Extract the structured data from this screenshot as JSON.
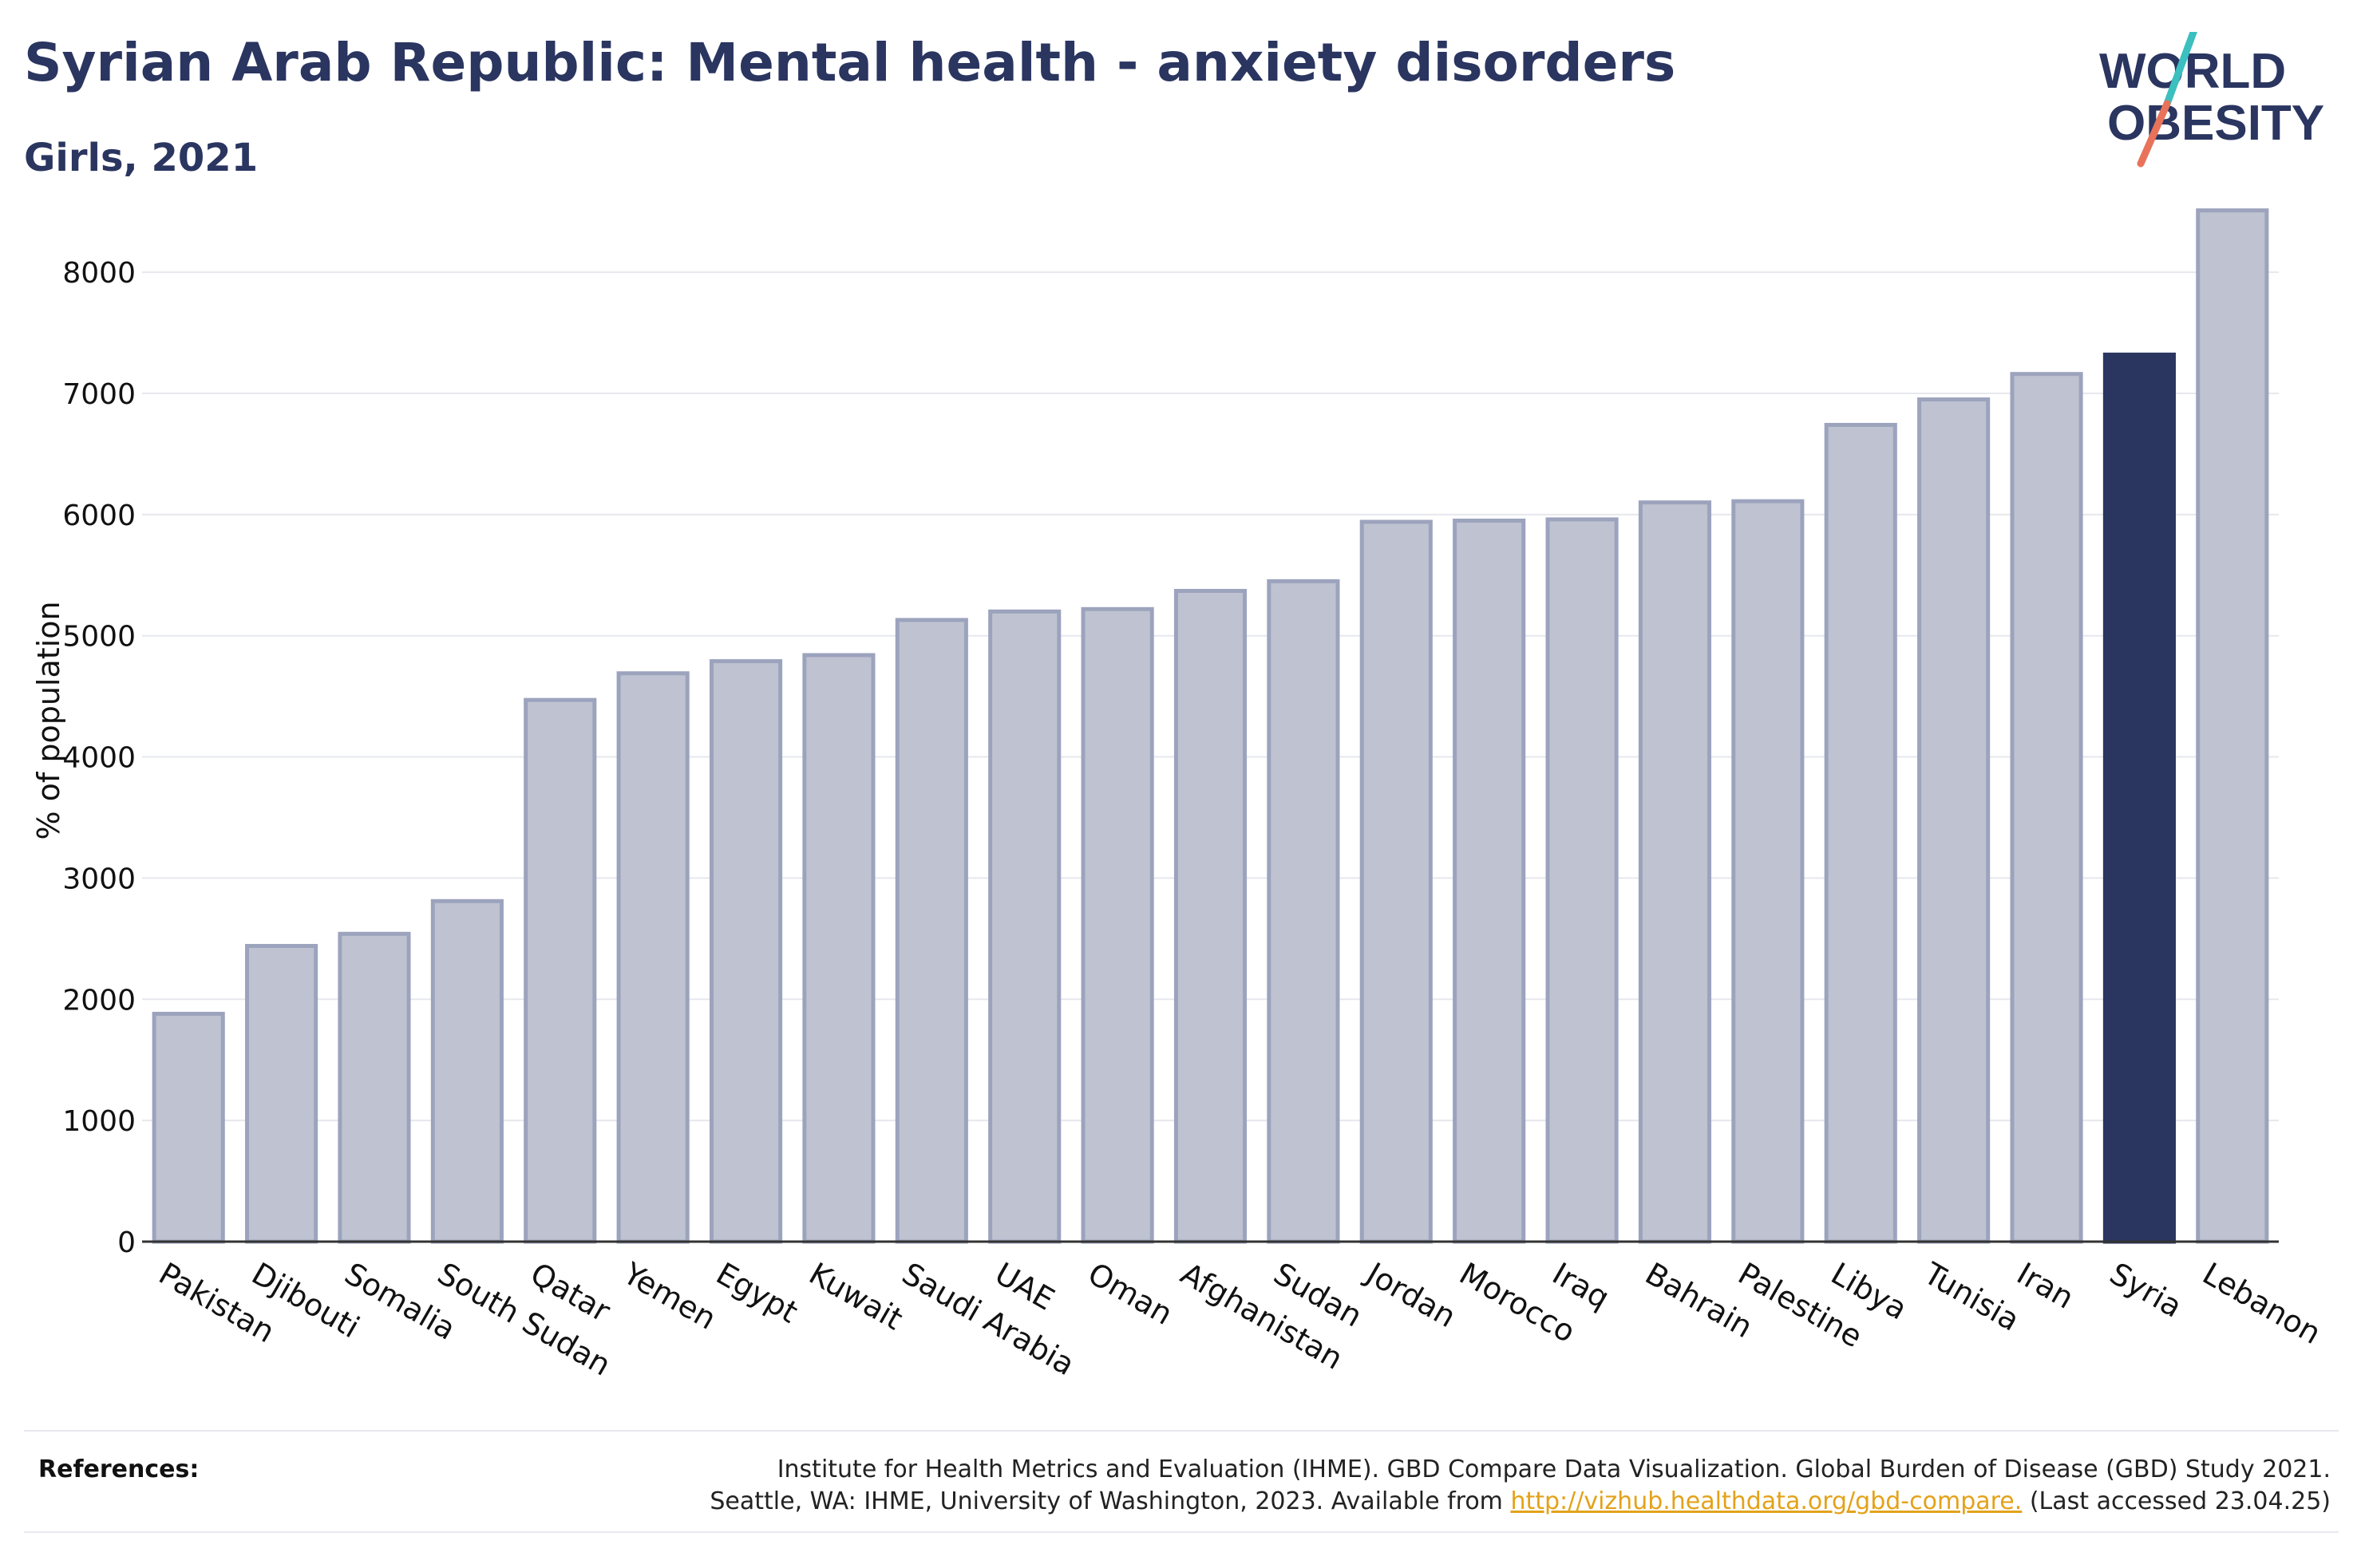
{
  "header": {
    "title": "Syrian Arab Republic: Mental health - anxiety disorders",
    "subtitle": "Girls, 2021"
  },
  "logo": {
    "line1": "WORLD",
    "line2": "OBESITY",
    "colors": {
      "text": "#2a3560",
      "slash_teal": "#3bbfbf",
      "slash_coral": "#e8735a"
    }
  },
  "chart_data": {
    "type": "bar",
    "ylabel": "% of population",
    "xlabel": "",
    "ylim": [
      0,
      8600
    ],
    "yticks": [
      0,
      1000,
      2000,
      3000,
      4000,
      5000,
      6000,
      7000,
      8000
    ],
    "grid": true,
    "highlight": "Syria",
    "colors": {
      "bar": "#bfc3d1",
      "bar_border": "#9ca3bd",
      "highlight": "#2a3560",
      "grid": "#e6e8ee"
    },
    "categories": [
      "Pakistan",
      "Djibouti",
      "Somalia",
      "South Sudan",
      "Qatar",
      "Yemen",
      "Egypt",
      "Kuwait",
      "Saudi Arabia",
      "UAE",
      "Oman",
      "Afghanistan",
      "Sudan",
      "Jordan",
      "Morocco",
      "Iraq",
      "Bahrain",
      "Palestine",
      "Libya",
      "Tunisia",
      "Iran",
      "Syria",
      "Lebanon"
    ],
    "values": [
      1880,
      2440,
      2540,
      2810,
      4470,
      4690,
      4790,
      4840,
      5130,
      5200,
      5220,
      5370,
      5450,
      5940,
      5950,
      5960,
      6100,
      6110,
      6740,
      6950,
      7160,
      7320,
      8510
    ]
  },
  "references": {
    "label": "References:",
    "line1": "Institute for Health Metrics and Evaluation (IHME). GBD Compare Data Visualization. Global Burden of Disease (GBD) Study 2021.",
    "line2_before": "Seattle, WA: IHME, University of Washington, 2023. Available from ",
    "link": "http://vizhub.healthdata.org/gbd-compare.",
    "line2_after": " (Last accessed 23.04.25)"
  }
}
